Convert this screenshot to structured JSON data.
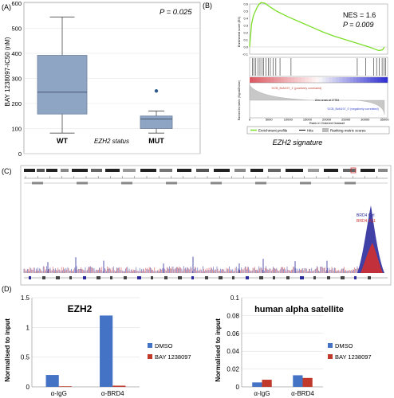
{
  "panels": {
    "a_label": "(A)",
    "b_label": "(B)",
    "c_label": "(C)",
    "d_label": "(D)"
  },
  "colors": {
    "box_fill": "#8fa5c4",
    "box_stroke": "#6b7f9e",
    "outlier": "#2f5a8e",
    "gsea_line": "#7cde2a",
    "dmso": "#4472c4",
    "bay": "#c0392b",
    "brd4_ctrl": "#2b2b9c",
    "brd4_jq1": "#d03030"
  },
  "chart_data": [
    {
      "type": "box",
      "panel": "A",
      "ylabel": "BAY 1238097-IC50 (nM)",
      "xlabel": "EZH2 status",
      "annotation": "P = 0.025",
      "ylim": [
        0,
        600
      ],
      "yticks": [
        0,
        100,
        200,
        300,
        400,
        500,
        600
      ],
      "categories": [
        "WT",
        "MUT"
      ],
      "boxes": [
        {
          "name": "WT",
          "min": 82,
          "q1": 158,
          "median": 245,
          "q3": 392,
          "max": 545
        },
        {
          "name": "MUT",
          "min": 82,
          "q1": 100,
          "median": 138,
          "q3": 150,
          "max": 170,
          "outliers": [
            250
          ]
        }
      ]
    },
    {
      "type": "line",
      "panel": "B",
      "title": "",
      "ylabel": "Enrichment score (ES)",
      "xlabel": "Rank in Ordered Dataset",
      "bottom_ylabel": "Ranked list metric (Signal2Noise)",
      "stats_nes": "NES = 1.6",
      "stats_p": "P = 0.009",
      "signature": "EZH2 signature",
      "ylim": [
        -0.1,
        0.6
      ],
      "yticks": [
        "0.6",
        "0.5",
        "0.4",
        "0.3",
        "0.2",
        "0.1",
        "0.0",
        "-0.1"
      ],
      "xticks": [
        "0",
        "5000",
        "10000",
        "15000",
        "20000",
        "25000",
        "30000",
        "35000"
      ],
      "x": [
        0,
        500,
        1000,
        1500,
        2000,
        2500,
        3000,
        4000,
        5000,
        7000,
        10000,
        13000,
        16000,
        19000,
        22000,
        25000,
        28000,
        31000,
        32500,
        33500,
        34500,
        35000
      ],
      "y": [
        0.0,
        0.32,
        0.44,
        0.5,
        0.56,
        0.6,
        0.62,
        0.61,
        0.57,
        0.5,
        0.42,
        0.35,
        0.28,
        0.21,
        0.15,
        0.1,
        0.05,
        0.0,
        -0.03,
        -0.05,
        -0.04,
        0.0
      ],
      "pos_label": "'GCB_BoN197_1' (positively correlated)",
      "neg_label": "'GCB_BoN197_0' (negatively correlated)",
      "zero_cross": "Zero cross at 17784",
      "legend": [
        "Enrichment profile",
        "Hits",
        "Ranking metric scores"
      ]
    },
    {
      "type": "area",
      "panel": "C",
      "legend": [
        "BRD4 Ctrl",
        "BRD4 JQ1"
      ]
    },
    {
      "type": "bar",
      "panel": "D-left",
      "title": "EZH2",
      "ylabel": "Normalised to input",
      "ylim": [
        0,
        1.5
      ],
      "yticks": [
        "0",
        "0.5",
        "1",
        "1.5"
      ],
      "categories": [
        "α-IgG",
        "α-BRD4"
      ],
      "series": [
        {
          "name": "DMSO",
          "values": [
            0.2,
            1.2
          ]
        },
        {
          "name": "BAY 1238097",
          "values": [
            0.01,
            0.02
          ]
        }
      ]
    },
    {
      "type": "bar",
      "panel": "D-right",
      "title": "human alpha satellite",
      "ylabel": "Normalised to input",
      "ylim": [
        0,
        0.1
      ],
      "yticks": [
        "0",
        "0.02",
        "0.04",
        "0.06",
        "0.08",
        "0.1"
      ],
      "categories": [
        "α-IgG",
        "α-BRD4"
      ],
      "series": [
        {
          "name": "DMSO",
          "values": [
            0.005,
            0.013
          ]
        },
        {
          "name": "BAY 1238097",
          "values": [
            0.008,
            0.01
          ]
        }
      ]
    }
  ]
}
